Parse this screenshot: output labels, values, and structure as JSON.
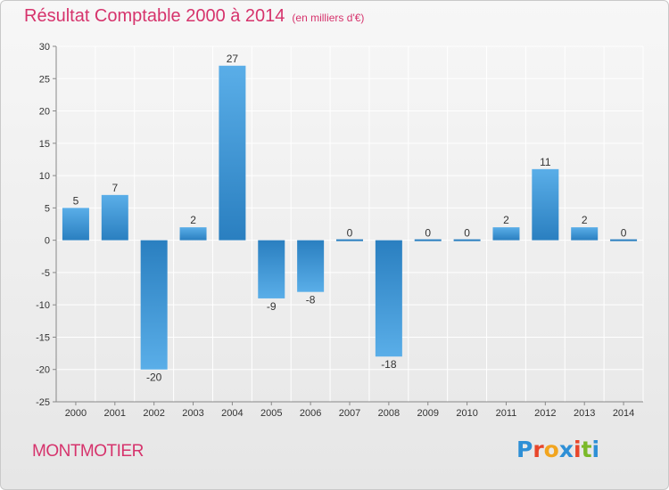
{
  "header": {
    "title": "Résultat Comptable 2000 à 2014",
    "subtitle": "(en milliers d'€)"
  },
  "footer": {
    "commune": "MONTMOTIER",
    "logo": {
      "text": "Proxiti",
      "letters": [
        {
          "char": "P",
          "color": "#2e8fd6"
        },
        {
          "char": "r",
          "color": "#e8462b"
        },
        {
          "char": "o",
          "color": "#f2a51f"
        },
        {
          "char": "x",
          "color": "#2e8fd6"
        },
        {
          "char": "i",
          "color": "#e8462b"
        },
        {
          "char": "t",
          "color": "#7ab929"
        },
        {
          "char": "i",
          "color": "#2e8fd6"
        }
      ]
    }
  },
  "chart_data": {
    "type": "bar",
    "categories": [
      "2000",
      "2001",
      "2002",
      "2003",
      "2004",
      "2005",
      "2006",
      "2007",
      "2008",
      "2009",
      "2010",
      "2011",
      "2012",
      "2013",
      "2014"
    ],
    "values": [
      5,
      7,
      -20,
      2,
      27,
      -9,
      -8,
      0,
      -18,
      0,
      0,
      2,
      11,
      2,
      0
    ],
    "data_labels": [
      "5",
      "7",
      "-20",
      "2",
      "27",
      "-9",
      "-8",
      "0",
      "-18",
      "0",
      "0",
      "2",
      "11",
      "2",
      "0"
    ],
    "y_ticks": [
      30,
      25,
      20,
      15,
      10,
      5,
      0,
      -5,
      -10,
      -15,
      -20,
      -25
    ],
    "ylim": [
      -25,
      30
    ],
    "grid": true,
    "colors": {
      "bar_light": "#5aaee8",
      "bar_dark": "#2a7fc0",
      "grid": "#ffffff",
      "axis": "#888888",
      "text": "#333333"
    }
  }
}
